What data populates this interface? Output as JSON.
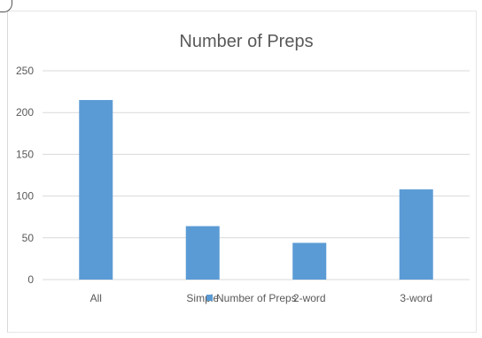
{
  "chart_data": {
    "type": "bar",
    "title": "Number of Preps",
    "categories": [
      "All",
      "Simple",
      "2-word",
      "3-word"
    ],
    "series": [
      {
        "name": "Number of Preps",
        "values": [
          215,
          64,
          44,
          108
        ]
      }
    ],
    "ylim": [
      0,
      250
    ],
    "yticks": [
      0,
      50,
      100,
      150,
      200,
      250
    ],
    "xlabel": "",
    "ylabel": "",
    "grid": true,
    "legend": "bottom",
    "bar_color": "#5b9bd5",
    "grid_color": "#d9d9d9"
  }
}
